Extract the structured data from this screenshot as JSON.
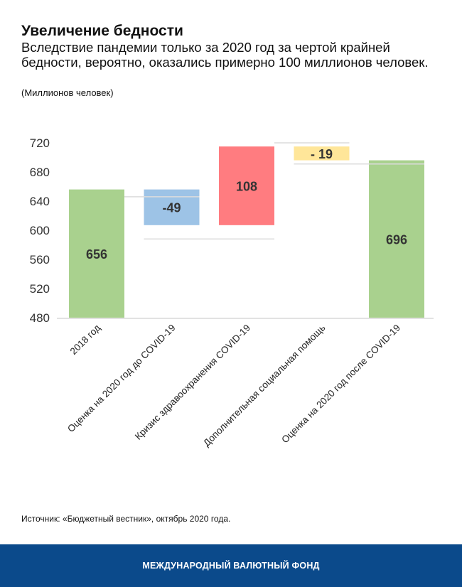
{
  "header": {
    "title": "Увеличение бедности",
    "subtitle": "Вследствие пандемии только за 2020 год за чертой крайней бедности, вероятно, оказались примерно 100 миллионов человек.",
    "units": "(Миллионов человек)"
  },
  "chart_data": {
    "type": "waterfall",
    "title": "Увеличение бедности",
    "ylabel": "Миллионов человек",
    "ylim": [
      480,
      720
    ],
    "yticks": [
      480,
      520,
      560,
      600,
      640,
      680,
      720
    ],
    "categories": [
      "2018 год",
      "Оценка на 2020 год до COVID-19",
      "Кризис здравоохранения COVID-19",
      "Дополнительная социальная помощь",
      "Оценка на 2020 год после COVID-19"
    ],
    "bars": [
      {
        "label": "656",
        "base": 480,
        "top": 656,
        "color": "#a9d18e"
      },
      {
        "label": "-49",
        "base": 607,
        "top": 656,
        "color": "#9dc3e6"
      },
      {
        "label": "108",
        "base": 607,
        "top": 715,
        "color": "#ff7c80"
      },
      {
        "label": "- 19",
        "base": 696,
        "top": 715,
        "color": "#ffe699"
      },
      {
        "label": "696",
        "base": 480,
        "top": 696,
        "color": "#a9d18e"
      }
    ],
    "connectors": [
      {
        "value": 646,
        "from": 0,
        "to": 1
      },
      {
        "value": 588,
        "from": 1,
        "to": 2
      },
      {
        "value": 720,
        "from": 2,
        "to": 3
      },
      {
        "value": 691,
        "from": 3,
        "to": 4
      }
    ],
    "grid": false
  },
  "footer": {
    "source": "Источник: «Бюджетный вестник», октябрь 2020 года.",
    "org": "МЕЖДУНАРОДНЫЙ ВАЛЮТНЫЙ ФОНД"
  }
}
